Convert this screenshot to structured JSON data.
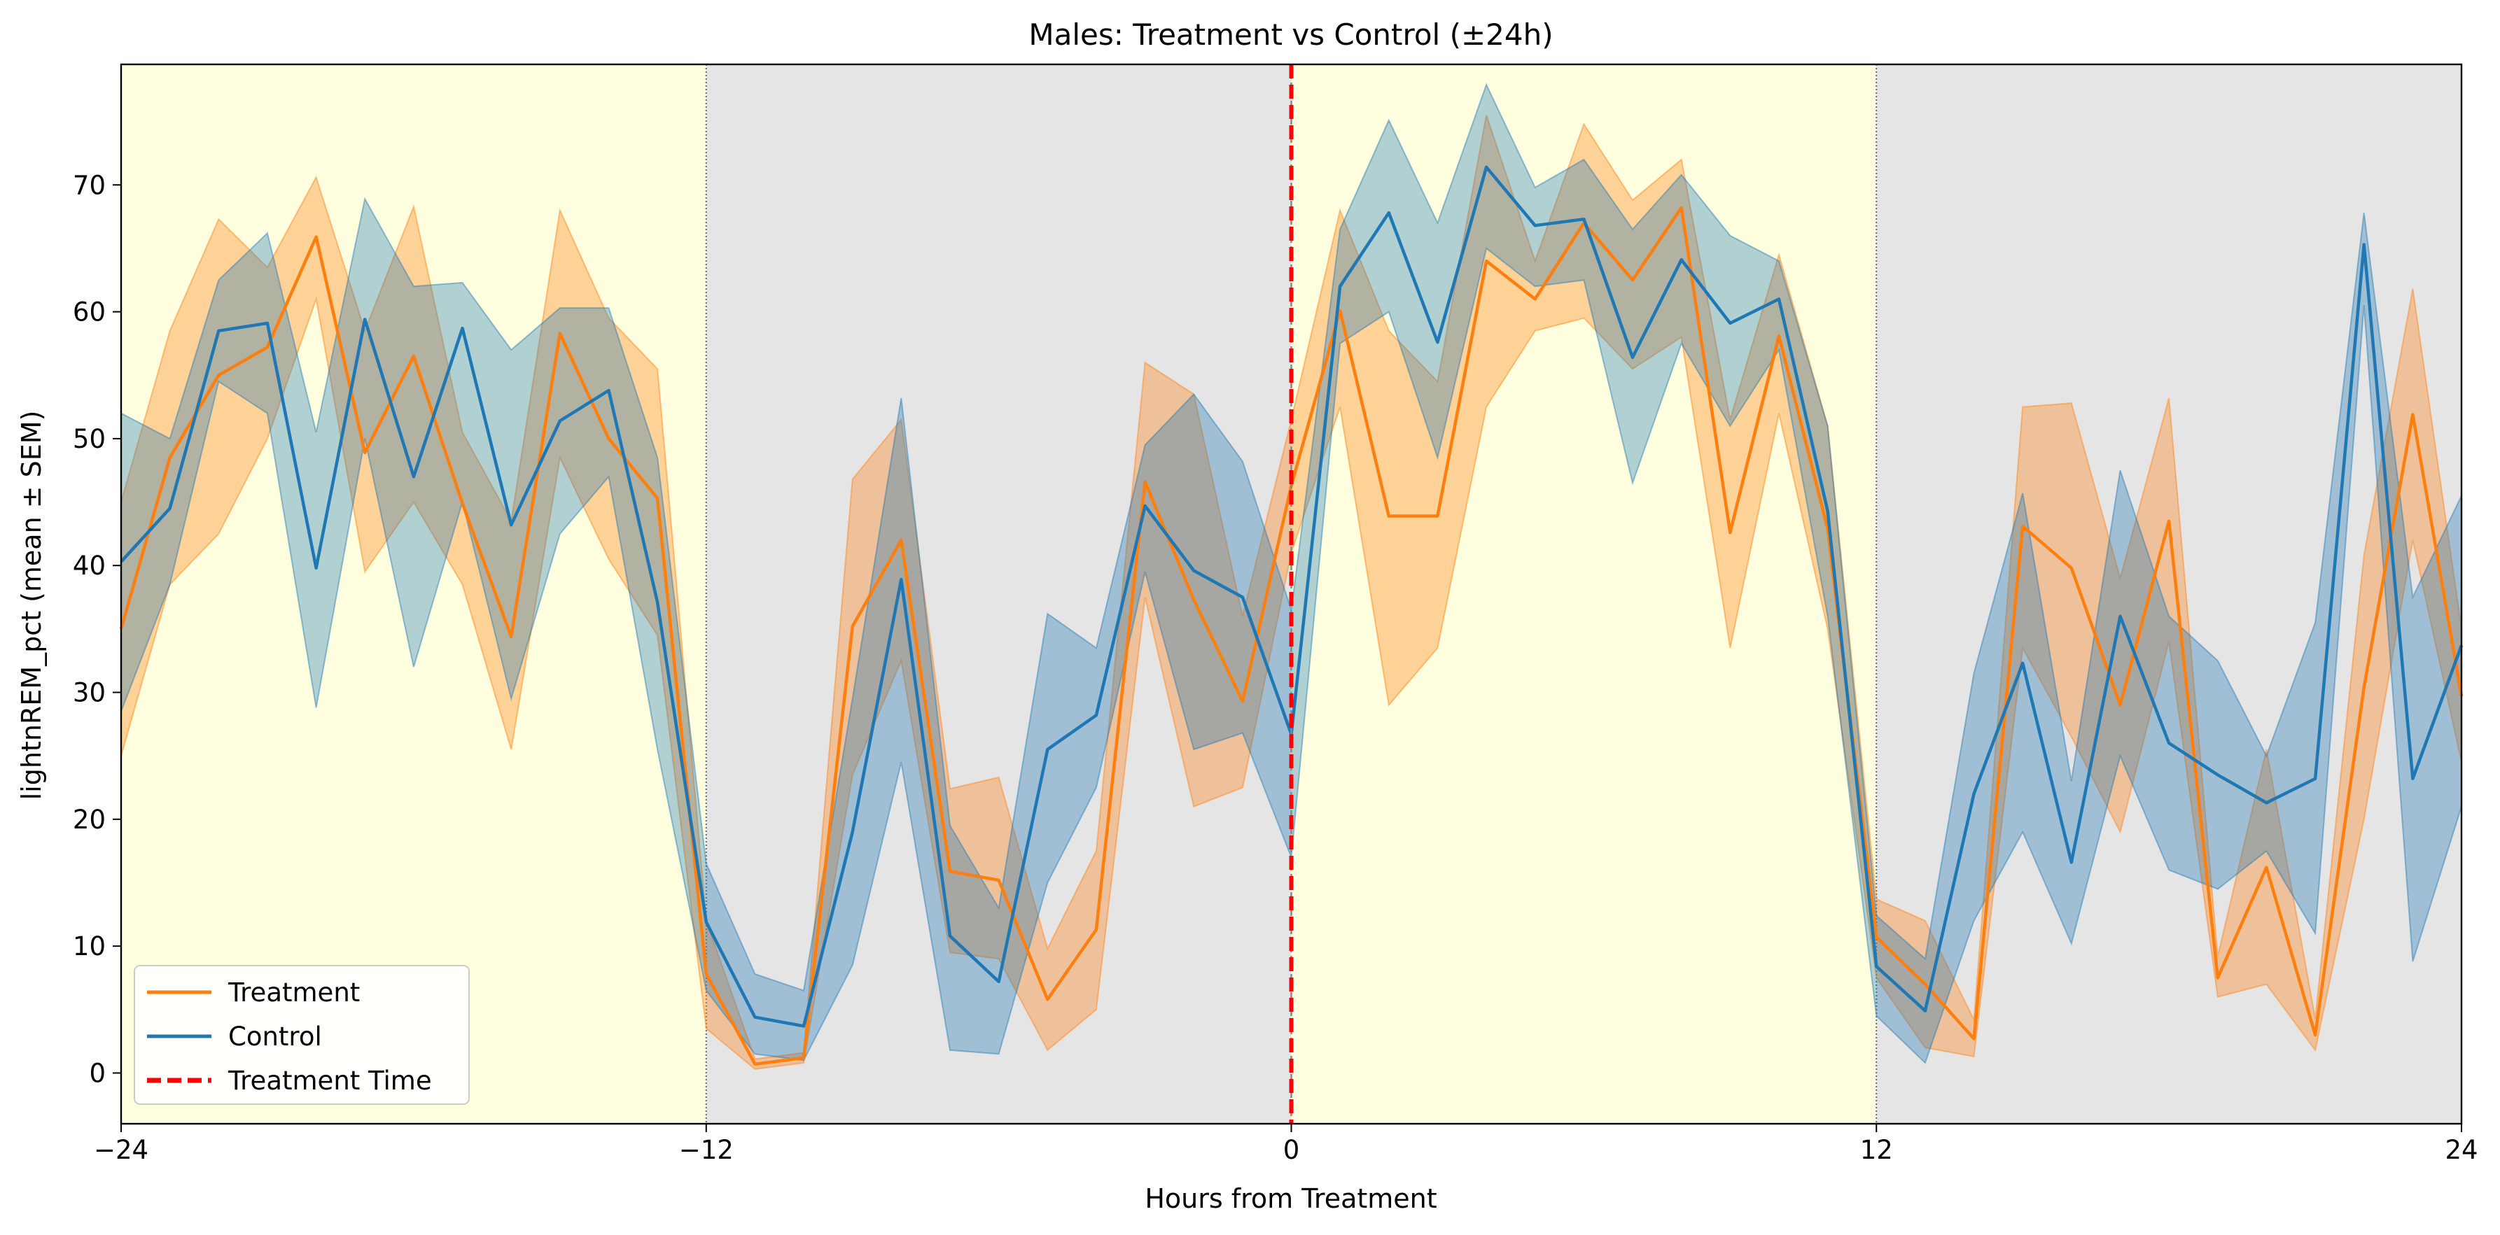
{
  "chart_data": {
    "type": "line",
    "title": "Males: Treatment vs Control (±24h)",
    "xlabel": "Hours from Treatment",
    "ylabel": "lightnREM_pct (mean ± SEM)",
    "xlim": [
      -24,
      24
    ],
    "ylim": [
      -4,
      79.5
    ],
    "xticks": [
      -24,
      -12,
      0,
      12,
      24
    ],
    "yticks": [
      0,
      10,
      20,
      30,
      40,
      50,
      60,
      70
    ],
    "grid": false,
    "legend_position": "lower-left",
    "background_bands": [
      {
        "from": -24,
        "to": -12,
        "phase": "light",
        "color": "#ffffe0"
      },
      {
        "from": -12,
        "to": 0,
        "phase": "dark",
        "color": "#e5e5e5"
      },
      {
        "from": 0,
        "to": 12,
        "phase": "light",
        "color": "#ffffe0"
      },
      {
        "from": 12,
        "to": 24,
        "phase": "dark",
        "color": "#e5e5e5"
      }
    ],
    "phase_boundaries": [
      -12,
      12
    ],
    "treatment_line": {
      "x": 0,
      "name": "Treatment Time",
      "color": "#ff0000"
    },
    "x": [
      -24,
      -23,
      -22,
      -21,
      -20,
      -19,
      -18,
      -17,
      -16,
      -15,
      -14,
      -13,
      -12,
      -11,
      -10,
      -9,
      -8,
      -7,
      -6,
      -5,
      -4,
      -3,
      -2,
      -1,
      0,
      1,
      2,
      3,
      4,
      5,
      6,
      7,
      8,
      9,
      10,
      11,
      12,
      13,
      14,
      15,
      16,
      17,
      18,
      19,
      20,
      21,
      22,
      23,
      24
    ],
    "series": [
      {
        "name": "Treatment",
        "color": "#ff7f0e",
        "mean": [
          35.0,
          48.5,
          55.0,
          57.2,
          65.9,
          48.9,
          56.5,
          44.9,
          34.4,
          58.3,
          50.0,
          45.3,
          7.8,
          0.7,
          1.2,
          35.2,
          42.0,
          15.9,
          15.2,
          5.8,
          11.3,
          46.6,
          37.3,
          29.3,
          46.3,
          60.1,
          43.9,
          43.9,
          64.0,
          61.0,
          67.0,
          62.5,
          68.2,
          42.6,
          58.1,
          42.9,
          10.7,
          7.0,
          2.7,
          43.1,
          39.8,
          29.0,
          43.5,
          7.5,
          16.2,
          3.0,
          30.4,
          51.9,
          29.7
        ],
        "lower": [
          25.0,
          38.5,
          42.5,
          50.0,
          61.0,
          39.5,
          45.0,
          38.5,
          25.5,
          48.5,
          40.5,
          34.5,
          3.5,
          0.3,
          0.8,
          23.5,
          32.5,
          9.5,
          9.0,
          1.8,
          5.0,
          37.5,
          21.0,
          22.5,
          41.0,
          52.5,
          29.0,
          33.5,
          52.5,
          58.5,
          59.5,
          55.5,
          58.0,
          33.5,
          52.0,
          35.0,
          7.5,
          2.0,
          1.3,
          33.5,
          26.5,
          19.0,
          34.0,
          6.0,
          7.0,
          1.8,
          20.0,
          42.0,
          24.5
        ],
        "upper": [
          45.0,
          58.5,
          67.3,
          63.5,
          70.6,
          58.5,
          68.3,
          50.5,
          43.5,
          68.0,
          59.5,
          55.5,
          12.0,
          1.1,
          1.6,
          46.8,
          51.5,
          22.4,
          23.3,
          9.8,
          17.5,
          56.0,
          53.5,
          36.0,
          51.5,
          68.0,
          58.5,
          54.5,
          75.5,
          64.0,
          74.8,
          68.8,
          72.0,
          51.5,
          64.5,
          51.0,
          13.7,
          12.0,
          4.2,
          52.5,
          52.8,
          39.0,
          53.2,
          9.2,
          25.5,
          4.3,
          40.8,
          61.8,
          35.0
        ]
      },
      {
        "name": "Control",
        "color": "#1f77b4",
        "mean": [
          40.3,
          44.5,
          58.5,
          59.1,
          39.8,
          59.4,
          47.0,
          58.7,
          43.2,
          51.4,
          53.8,
          37.1,
          11.9,
          4.4,
          3.7,
          19.0,
          38.9,
          10.8,
          7.2,
          25.5,
          28.2,
          44.7,
          39.6,
          37.5,
          26.7,
          62.0,
          67.8,
          57.6,
          71.4,
          66.8,
          67.3,
          56.4,
          64.1,
          59.1,
          61.0,
          44.3,
          8.4,
          4.9,
          22.0,
          32.3,
          16.6,
          36.0,
          26.0,
          23.5,
          21.3,
          23.2,
          65.3,
          23.2,
          33.7
        ],
        "lower": [
          28.5,
          38.5,
          54.5,
          52.0,
          28.8,
          50.0,
          32.0,
          45.0,
          29.5,
          42.5,
          47.0,
          25.5,
          6.5,
          1.5,
          1.0,
          8.5,
          24.5,
          1.8,
          1.5,
          15.0,
          22.5,
          39.5,
          25.5,
          26.8,
          17.0,
          57.5,
          60.0,
          48.5,
          65.0,
          62.0,
          62.5,
          46.5,
          57.5,
          51.0,
          57.0,
          36.0,
          4.5,
          0.8,
          12.0,
          19.0,
          10.2,
          25.0,
          16.0,
          14.5,
          17.5,
          11.0,
          60.5,
          8.8,
          21.0
        ],
        "upper": [
          52.0,
          50.0,
          62.5,
          66.2,
          50.5,
          68.9,
          62.0,
          62.3,
          57.0,
          60.3,
          60.3,
          48.5,
          16.5,
          7.8,
          6.5,
          29.5,
          53.2,
          19.5,
          13.0,
          36.2,
          33.5,
          49.5,
          53.5,
          48.2,
          36.5,
          66.5,
          75.1,
          67.0,
          77.9,
          69.8,
          72.0,
          66.5,
          70.8,
          66.0,
          64.0,
          51.0,
          12.4,
          9.0,
          31.5,
          45.7,
          23.0,
          47.5,
          36.0,
          32.5,
          25.0,
          35.5,
          67.8,
          37.5,
          45.5
        ]
      }
    ],
    "legend": [
      "Treatment",
      "Control",
      "Treatment Time"
    ]
  }
}
